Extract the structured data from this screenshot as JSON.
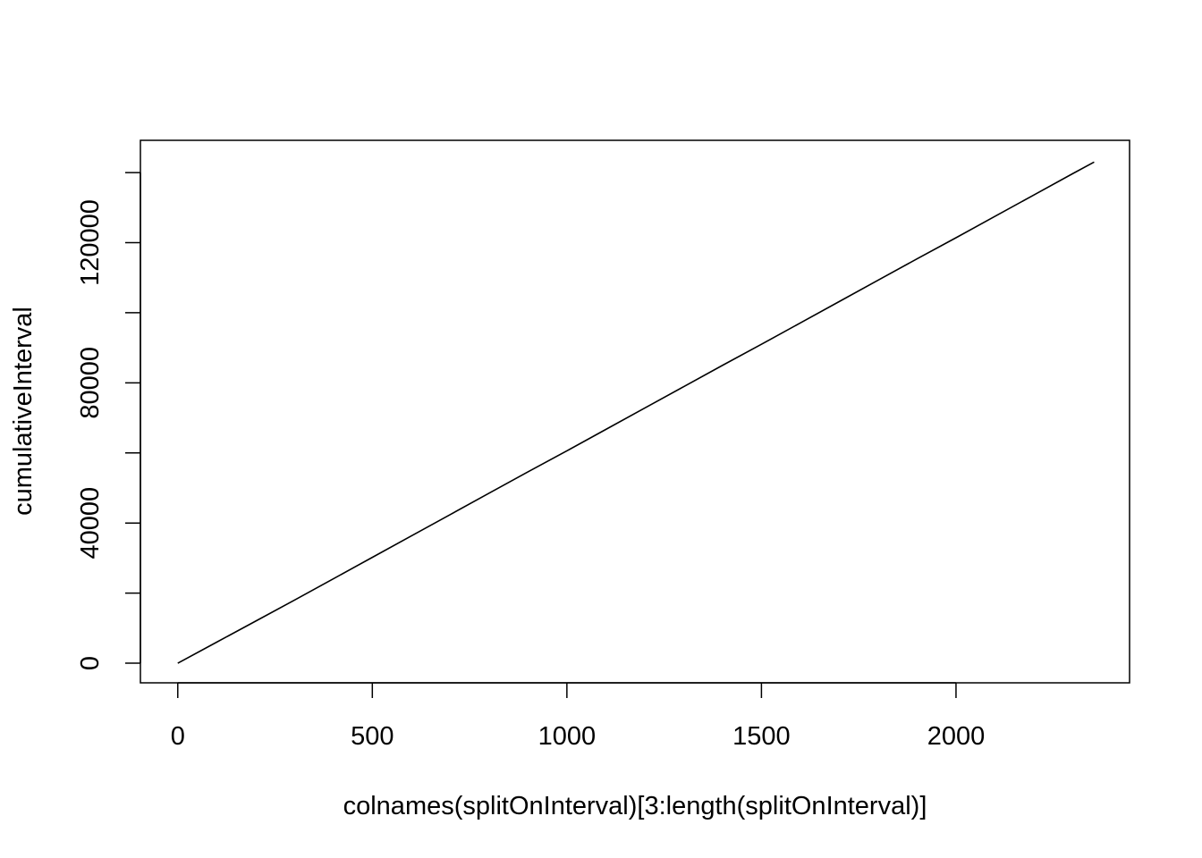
{
  "chart_data": {
    "type": "line",
    "title": "",
    "xlabel": "colnames(splitOnInterval)[3:length(splitOnInterval)]",
    "ylabel": "cumulativeInterval",
    "xlim": [
      -96,
      2446
    ],
    "ylim": [
      -5600,
      149200
    ],
    "x_ticks": [
      0,
      500,
      1000,
      1500,
      2000
    ],
    "x_tick_labels": [
      "0",
      "500",
      "1000",
      "1500",
      "2000"
    ],
    "y_ticks": [
      0,
      20000,
      40000,
      60000,
      80000,
      100000,
      120000,
      140000
    ],
    "y_tick_labels": [
      "0",
      "",
      "40000",
      "",
      "80000",
      "",
      "120000",
      ""
    ],
    "grid": false,
    "legend": "none",
    "line_color": "#000000",
    "series": [
      {
        "x": [
          0,
          100,
          200,
          300,
          400,
          500,
          600,
          700,
          800,
          900,
          1000,
          1100,
          1200,
          1300,
          1400,
          1500,
          1600,
          1700,
          1800,
          1900,
          2000,
          2100,
          2200,
          2300,
          2355
        ],
        "values": [
          0,
          6000,
          12000,
          18000,
          24100,
          30200,
          36300,
          42400,
          48500,
          54600,
          60600,
          66700,
          72800,
          78900,
          85000,
          91000,
          97100,
          103200,
          109300,
          115400,
          121400,
          127500,
          133600,
          139700,
          143000
        ]
      }
    ]
  }
}
